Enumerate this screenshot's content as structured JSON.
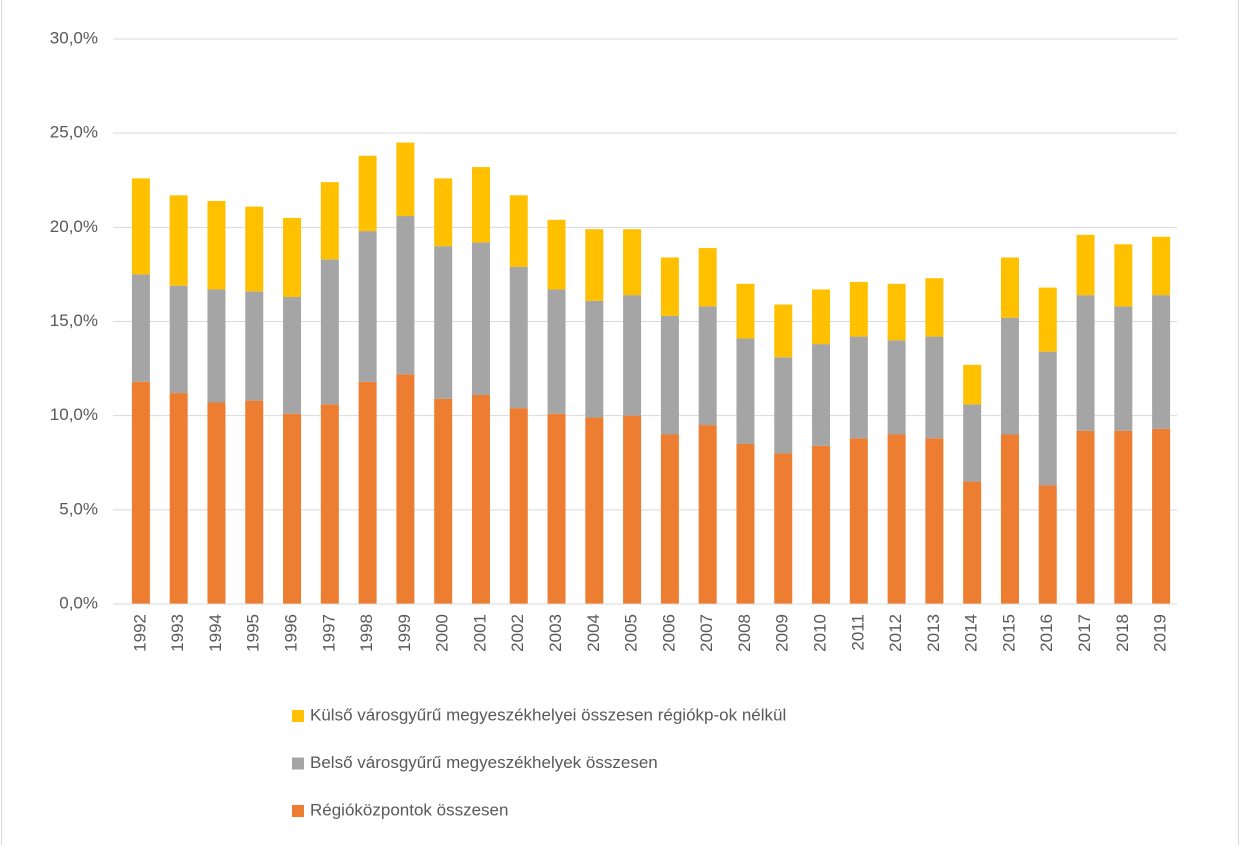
{
  "chart_data": {
    "type": "stacked_bar",
    "categories": [
      "1992",
      "1993",
      "1994",
      "1995",
      "1996",
      "1997",
      "1998",
      "1999",
      "2000",
      "2001",
      "2002",
      "2003",
      "2004",
      "2005",
      "2006",
      "2007",
      "2008",
      "2009",
      "2010",
      "2011",
      "2012",
      "2013",
      "2014",
      "2015",
      "2016",
      "2017",
      "2018",
      "2019"
    ],
    "series": [
      {
        "name": "Régióközpontok összesen",
        "color": "#ed7d31",
        "values": [
          11.8,
          11.2,
          10.7,
          10.8,
          10.1,
          10.6,
          11.8,
          12.2,
          10.9,
          11.1,
          10.4,
          10.1,
          9.9,
          10.0,
          9.0,
          9.5,
          8.5,
          8.0,
          8.4,
          8.8,
          9.0,
          8.8,
          6.5,
          9.0,
          6.3,
          9.2,
          9.2,
          9.3
        ]
      },
      {
        "name": "Belső városgyűrű megyeszékhelyek összesen",
        "color": "#a5a5a5",
        "values": [
          5.7,
          5.7,
          6.0,
          5.8,
          6.2,
          7.7,
          8.0,
          8.4,
          8.1,
          8.1,
          7.5,
          6.6,
          6.2,
          6.4,
          6.3,
          6.3,
          5.6,
          5.1,
          5.4,
          5.4,
          5.0,
          5.4,
          4.1,
          6.2,
          7.1,
          7.2,
          6.6,
          7.1
        ]
      },
      {
        "name": "Külső városgyűrű megyeszékhelyei összesen régiókp-ok nélkül",
        "color": "#ffc000",
        "values": [
          5.1,
          4.8,
          4.7,
          4.5,
          4.2,
          4.1,
          4.0,
          3.9,
          3.6,
          4.0,
          3.8,
          3.7,
          3.8,
          3.5,
          3.1,
          3.1,
          2.9,
          2.8,
          2.9,
          2.9,
          3.0,
          3.1,
          2.1,
          3.2,
          3.4,
          3.2,
          3.3,
          3.1
        ]
      }
    ],
    "ylim": [
      0,
      30
    ],
    "yticks": [
      {
        "value": 0,
        "label": "0,0%"
      },
      {
        "value": 5,
        "label": "5,0%"
      },
      {
        "value": 10,
        "label": "10,0%"
      },
      {
        "value": 15,
        "label": "15,0%"
      },
      {
        "value": 20,
        "label": "20,0%"
      },
      {
        "value": 25,
        "label": "25,0%"
      },
      {
        "value": 30,
        "label": "30,0%"
      }
    ],
    "grid": true
  }
}
